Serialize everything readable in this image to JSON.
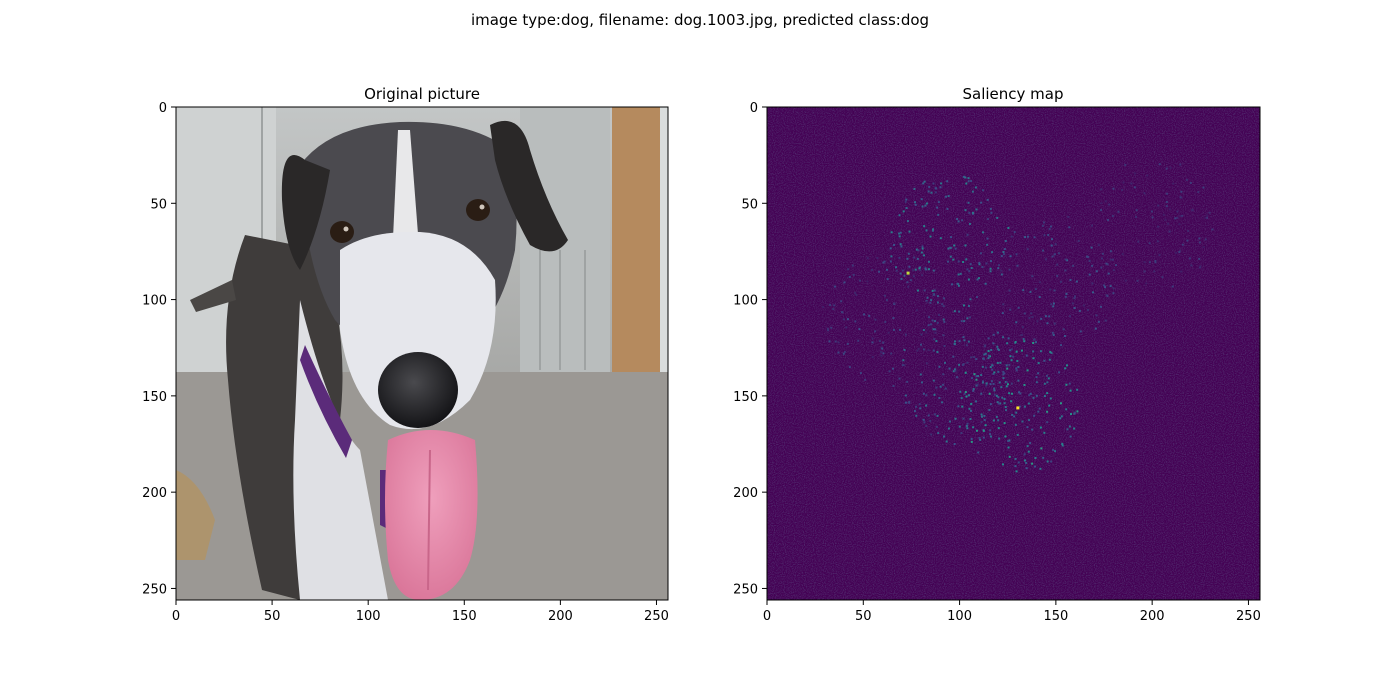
{
  "figure": {
    "suptitle": "image type:dog, filename: dog.1003.jpg, predicted class:dog"
  },
  "chart_data": [
    {
      "type": "image",
      "title": "Original picture",
      "xlabel": "",
      "ylabel": "",
      "xlim": [
        0,
        256
      ],
      "ylim": [
        256,
        0
      ],
      "xticks": [
        0,
        50,
        100,
        150,
        200,
        250
      ],
      "yticks": [
        0,
        50,
        100,
        150,
        200,
        250
      ],
      "grid": false,
      "content": "photo of a dog"
    },
    {
      "type": "heatmap",
      "title": "Saliency map",
      "xlabel": "",
      "ylabel": "",
      "xlim": [
        0,
        256
      ],
      "ylim": [
        256,
        0
      ],
      "xticks": [
        0,
        50,
        100,
        150,
        200,
        250
      ],
      "yticks": [
        0,
        50,
        100,
        150,
        200,
        250
      ],
      "grid": false,
      "colormap": "viridis",
      "background_color": "#440154",
      "hotspots": [
        {
          "x": 95,
          "y": 70,
          "level": 0.45
        },
        {
          "x": 130,
          "y": 155,
          "level": 0.55
        },
        {
          "x": 100,
          "y": 140,
          "level": 0.4
        },
        {
          "x": 150,
          "y": 90,
          "level": 0.3
        },
        {
          "x": 60,
          "y": 110,
          "level": 0.25
        },
        {
          "x": 200,
          "y": 60,
          "level": 0.2
        }
      ],
      "peaks": [
        {
          "x": 130,
          "y": 156,
          "level": 1.0
        },
        {
          "x": 73,
          "y": 86,
          "level": 0.9
        }
      ]
    }
  ]
}
